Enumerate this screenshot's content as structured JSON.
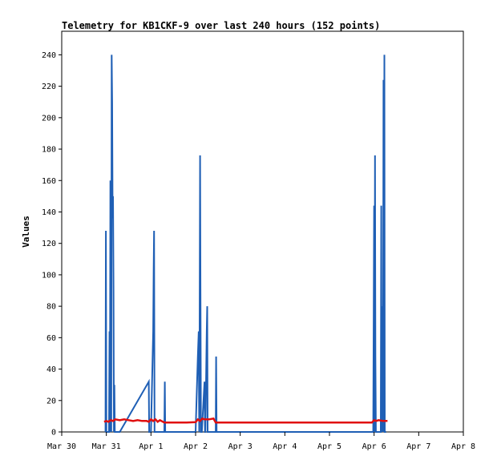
{
  "chart_data": {
    "type": "line",
    "title": "Telemetry for KB1CKF-9 over last 240 hours (152 points)",
    "xlabel": "",
    "ylabel": "Values",
    "xlim": [
      "Mar 30",
      "Apr 8"
    ],
    "ylim": [
      0,
      255
    ],
    "categories": [
      "Mar 30",
      "Mar 31",
      "Apr 1",
      "Apr 2",
      "Apr 3",
      "Apr 4",
      "Apr 5",
      "Apr 6",
      "Apr 7",
      "Apr 8"
    ],
    "y_ticks": [
      0,
      20,
      40,
      60,
      80,
      100,
      120,
      140,
      160,
      180,
      200,
      220,
      240
    ],
    "grid": false,
    "legend": "none",
    "series": [
      {
        "color": "#1f5fb5",
        "x": [
          0.98,
          0.99,
          1.0,
          1.06,
          1.07,
          1.08,
          1.09,
          1.1,
          1.11,
          1.12,
          1.13,
          1.14,
          1.15,
          1.16,
          1.17,
          1.18,
          1.19,
          1.2,
          1.21,
          1.22,
          1.23,
          1.24,
          1.25,
          1.26,
          1.3,
          1.95,
          1.96,
          1.97,
          1.98,
          2.0,
          2.05,
          2.06,
          2.07,
          2.08,
          2.09,
          2.1,
          2.3,
          2.31,
          2.32,
          2.33,
          3.0,
          3.05,
          3.07,
          3.08,
          3.09,
          3.1,
          3.11,
          3.12,
          3.13,
          3.14,
          3.2,
          3.21,
          3.22,
          3.25,
          3.26,
          3.27,
          3.28,
          3.29,
          3.3,
          3.31,
          3.33,
          3.45,
          3.46,
          3.47,
          6.98,
          7.0,
          7.01,
          7.02,
          7.03,
          7.04,
          7.05,
          7.06,
          7.08,
          7.15,
          7.16,
          7.17,
          7.18,
          7.19,
          7.2,
          7.21,
          7.22,
          7.23,
          7.24,
          7.25,
          7.26,
          7.27
        ],
        "values": [
          0,
          128,
          0,
          0,
          64,
          0,
          160,
          80,
          0,
          240,
          210,
          136,
          150,
          90,
          0,
          30,
          0,
          0,
          0,
          0,
          0,
          0,
          0,
          0,
          0,
          32,
          0,
          0,
          0,
          0,
          64,
          104,
          128,
          0,
          0,
          0,
          0,
          32,
          0,
          0,
          0,
          48,
          64,
          0,
          64,
          176,
          88,
          0,
          0,
          0,
          32,
          0,
          0,
          64,
          80,
          0,
          0,
          0,
          0,
          0,
          0,
          0,
          48,
          0,
          0,
          144,
          0,
          176,
          48,
          0,
          0,
          0,
          0,
          0,
          144,
          0,
          72,
          80,
          0,
          224,
          0,
          240,
          0,
          0,
          0,
          0
        ]
      },
      {
        "color": "#e01010",
        "x": [
          0.95,
          1.0,
          1.05,
          1.1,
          1.15,
          1.2,
          1.3,
          1.4,
          1.5,
          1.6,
          1.7,
          1.8,
          1.9,
          1.95,
          2.0,
          2.05,
          2.1,
          2.15,
          2.2,
          2.3,
          2.5,
          2.8,
          3.0,
          3.05,
          3.1,
          3.15,
          3.2,
          3.3,
          3.4,
          3.45,
          3.5,
          4.0,
          5.0,
          6.0,
          6.95,
          7.0,
          7.05,
          7.1,
          7.2,
          7.3
        ],
        "values": [
          6.5,
          7,
          6.5,
          7.5,
          7,
          8,
          7.5,
          8,
          7.5,
          7,
          7.5,
          7,
          7,
          6.5,
          8,
          7,
          8,
          6.5,
          7.5,
          6,
          6,
          6,
          6.2,
          8,
          7,
          8.5,
          8,
          8,
          8.5,
          6,
          6,
          6,
          6,
          6,
          6,
          7.5,
          7,
          7.5,
          7,
          7
        ]
      }
    ]
  }
}
